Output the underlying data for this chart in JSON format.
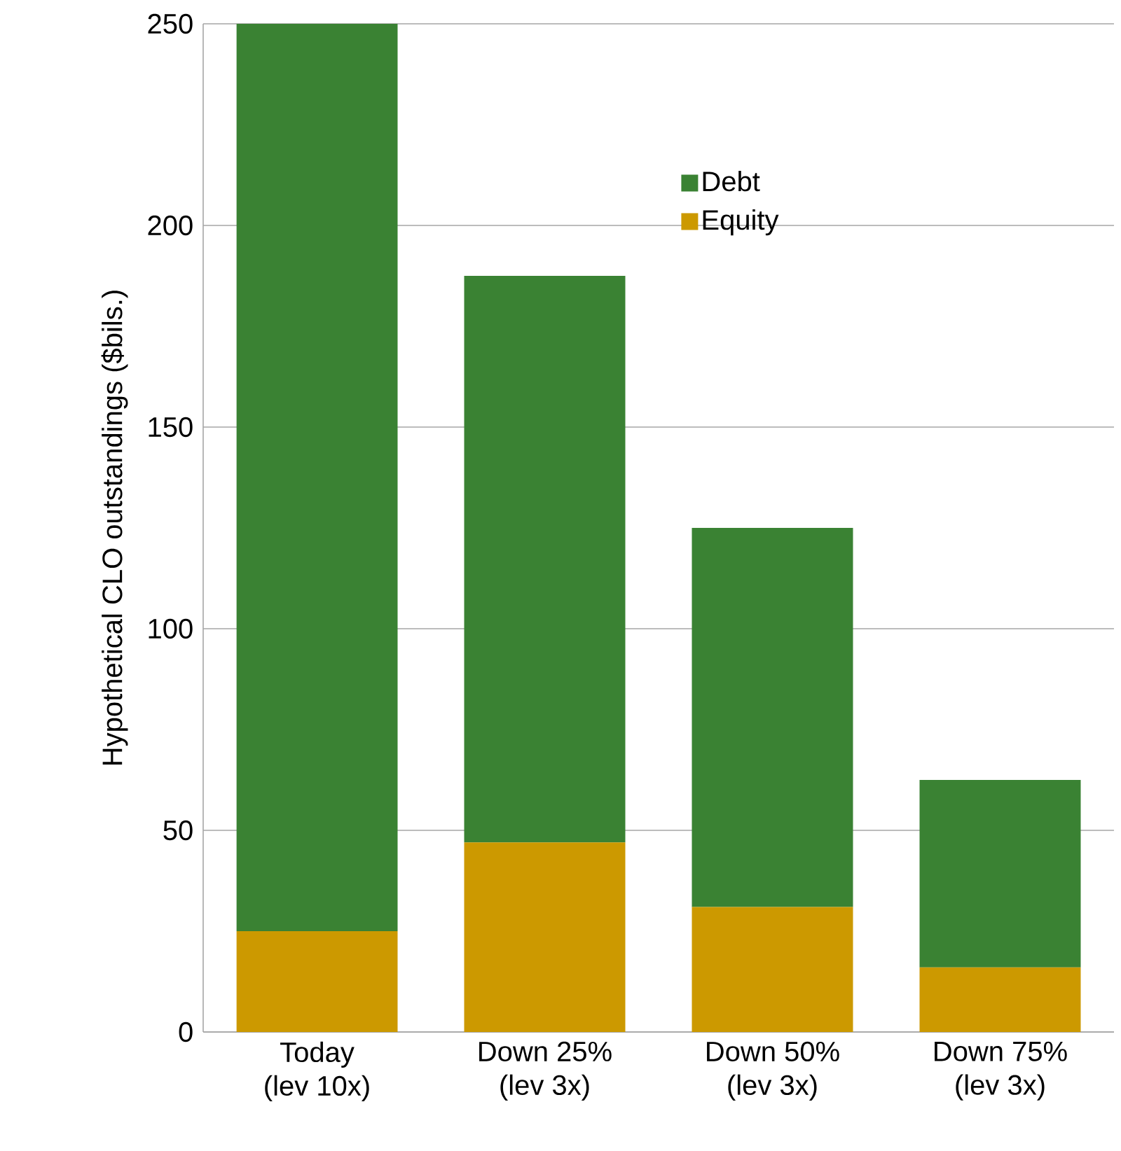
{
  "chart_data": {
    "type": "bar",
    "stacked": true,
    "ylabel": "Hypothetical CLO outstandings ($bils.)",
    "categories": [
      "Today\n(lev 10x)",
      "Down 25%\n(lev 3x)",
      "Down 50%\n(lev 3x)",
      "Down 75%\n(lev 3x)"
    ],
    "series": [
      {
        "name": "Equity",
        "color": "#cc9900",
        "values": [
          25,
          47,
          31,
          16
        ]
      },
      {
        "name": "Debt",
        "color": "#3a8233",
        "values": [
          225,
          140.5,
          94,
          46.5
        ]
      }
    ],
    "ylim": [
      0,
      250
    ],
    "yticks": [
      0,
      50,
      100,
      150,
      200,
      250
    ],
    "grid": "y",
    "legend": "top right"
  }
}
